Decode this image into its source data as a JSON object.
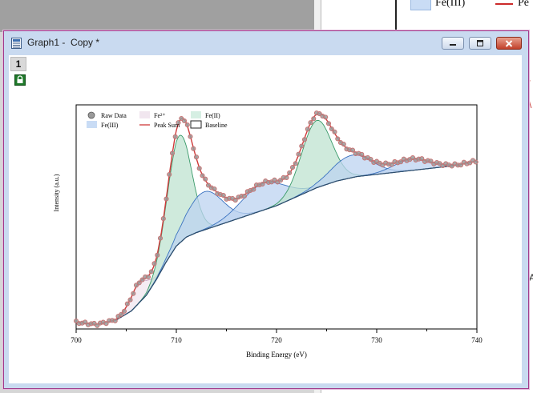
{
  "background": {
    "legend_fe3_label": "Fe(III)",
    "legend_peak_partial": "Pe",
    "right_edge_char": "A"
  },
  "window": {
    "title": "Graph1 -  Copy *",
    "page_tab": "1",
    "minimize_icon": "minimize-icon",
    "maximize_icon": "maximize-icon",
    "close_icon": "close-icon"
  },
  "chart_data": {
    "type": "line",
    "title": "",
    "xlabel": "Binding Energy (eV)",
    "ylabel": "Intensity (a.u.)",
    "xlim": [
      700,
      740
    ],
    "ylim": [
      0,
      1
    ],
    "xticks": [
      700,
      710,
      720,
      730,
      740
    ],
    "legend_position": "top-left",
    "legend": [
      {
        "label": "Raw Data",
        "style": "marker",
        "color": "#9a9a9a"
      },
      {
        "label": "Fe²⁺",
        "style": "fill",
        "color": "#f1e6ef"
      },
      {
        "label": "Fe(II)",
        "style": "fill",
        "color": "#d6efe3"
      },
      {
        "label": "Fe(III)",
        "style": "fill",
        "color": "#c9dcf5"
      },
      {
        "label": "Peak Sum",
        "style": "line",
        "color": "#d03a3a"
      },
      {
        "label": "Baseline",
        "style": "box",
        "color": "#222222"
      }
    ],
    "colors": {
      "raw": "#c97070",
      "peak_sum": "#d03a3a",
      "baseline": "#2e4c6a",
      "fe2plus": "#f1e6ef",
      "fe_ii": "#bfe3d0",
      "fe_iii": "#bcd3f0"
    },
    "baseline": [
      [
        700,
        0.03
      ],
      [
        702,
        0.02
      ],
      [
        704,
        0.04
      ],
      [
        705.5,
        0.08
      ],
      [
        707,
        0.15
      ],
      [
        708,
        0.22
      ],
      [
        709,
        0.3
      ],
      [
        710,
        0.37
      ],
      [
        711,
        0.41
      ],
      [
        712,
        0.43
      ],
      [
        714,
        0.46
      ],
      [
        716,
        0.49
      ],
      [
        718,
        0.52
      ],
      [
        720,
        0.55
      ],
      [
        722,
        0.59
      ],
      [
        724,
        0.63
      ],
      [
        726,
        0.66
      ],
      [
        728,
        0.68
      ],
      [
        730,
        0.69
      ],
      [
        732,
        0.7
      ],
      [
        734,
        0.71
      ],
      [
        736,
        0.72
      ],
      [
        738,
        0.73
      ],
      [
        740,
        0.75
      ]
    ],
    "peaks": [
      {
        "name": "Fe²⁺",
        "center": 706.3,
        "width": 0.9,
        "height": 0.09,
        "color": "#f1e6ef"
      },
      {
        "name": "Fe(II)",
        "center": 710.3,
        "width": 1.2,
        "height": 0.48,
        "color": "#bfe3d0"
      },
      {
        "name": "Fe(III)",
        "center": 712.8,
        "width": 1.8,
        "height": 0.17,
        "color": "#bcd3f0"
      },
      {
        "name": "Fe(III)",
        "center": 718.7,
        "width": 2.2,
        "height": 0.12,
        "color": "#bcd3f0"
      },
      {
        "name": "Fe(II)",
        "center": 724.0,
        "width": 1.5,
        "height": 0.3,
        "color": "#bfe3d0"
      },
      {
        "name": "Fe(III)",
        "center": 727.5,
        "width": 2.0,
        "height": 0.1,
        "color": "#bcd3f0"
      },
      {
        "name": "Fe(III)",
        "center": 733.5,
        "width": 1.8,
        "height": 0.05,
        "color": "#bcd3f0"
      }
    ]
  }
}
